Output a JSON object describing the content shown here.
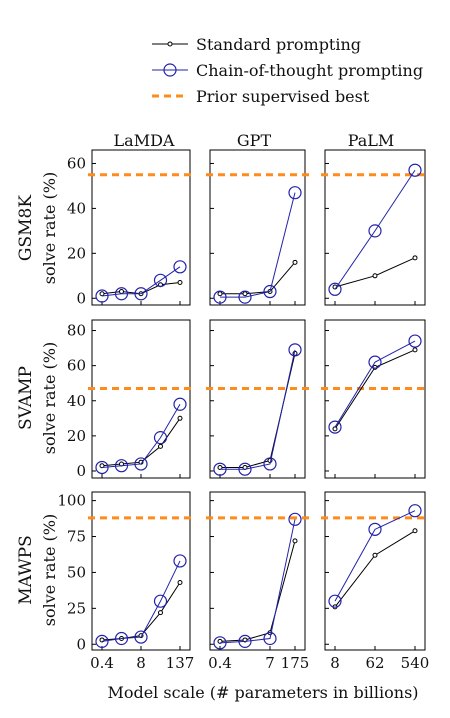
{
  "legend": {
    "standard": "Standard prompting",
    "cot": "Chain-of-thought prompting",
    "prior": "Prior supervised best"
  },
  "xlabel": "Model scale (# parameters in billions)",
  "colors": {
    "standard": "#000000",
    "cot": "#2222aa",
    "prior": "#ff8c1a"
  },
  "chart_data": {
    "type": "line",
    "columns": [
      "LaMDA",
      "GPT",
      "PaLM"
    ],
    "rows": [
      {
        "dataset": "GSM8K",
        "ylabel": "solve rate (%)",
        "yticks": [
          0,
          20,
          40,
          60
        ],
        "ylim": [
          -3,
          66
        ]
      },
      {
        "dataset": "SVAMP",
        "ylabel": "solve rate (%)",
        "yticks": [
          0,
          20,
          40,
          60,
          80
        ],
        "ylim": [
          -4,
          86
        ]
      },
      {
        "dataset": "MAWPS",
        "ylabel": "solve rate (%)",
        "yticks": [
          0,
          25,
          50,
          75,
          100
        ],
        "ylim": [
          -4,
          106
        ]
      }
    ],
    "models": {
      "LaMDA": {
        "x_ticks": [
          "0.4",
          "8",
          "137"
        ],
        "n_points": 5,
        "tick_idx": [
          0,
          2,
          4
        ]
      },
      "GPT": {
        "x_ticks": [
          "0.4",
          "7",
          "175"
        ],
        "n_points": 4,
        "tick_idx": [
          0,
          2,
          3
        ]
      },
      "PaLM": {
        "x_ticks": [
          "8",
          "62",
          "540"
        ],
        "n_points": 3,
        "tick_idx": [
          0,
          1,
          2
        ]
      }
    },
    "panels": [
      {
        "row": "GSM8K",
        "model": "LaMDA",
        "standard": [
          2,
          3,
          2,
          6,
          7
        ],
        "cot": [
          1,
          2,
          2,
          8,
          14
        ],
        "prior": 55
      },
      {
        "row": "GSM8K",
        "model": "GPT",
        "standard": [
          2,
          2,
          3,
          16
        ],
        "cot": [
          0.5,
          0.5,
          3,
          47
        ],
        "prior": 55
      },
      {
        "row": "GSM8K",
        "model": "PaLM",
        "standard": [
          5,
          10,
          18
        ],
        "cot": [
          4,
          30,
          57
        ],
        "prior": 55
      },
      {
        "row": "SVAMP",
        "model": "LaMDA",
        "standard": [
          3,
          4,
          5,
          14,
          30
        ],
        "cot": [
          2,
          3,
          4,
          19,
          38
        ],
        "prior": 47
      },
      {
        "row": "SVAMP",
        "model": "GPT",
        "standard": [
          2,
          2,
          6,
          67
        ],
        "cot": [
          1,
          1,
          4,
          69
        ],
        "prior": 47
      },
      {
        "row": "SVAMP",
        "model": "PaLM",
        "standard": [
          24,
          59,
          69
        ],
        "cot": [
          25,
          62,
          74
        ],
        "prior": 47
      },
      {
        "row": "MAWPS",
        "model": "LaMDA",
        "standard": [
          3,
          4,
          6,
          22,
          43
        ],
        "cot": [
          2,
          4,
          5,
          30,
          58
        ],
        "prior": 88
      },
      {
        "row": "MAWPS",
        "model": "GPT",
        "standard": [
          2,
          3,
          8,
          72
        ],
        "cot": [
          1,
          2,
          4,
          87
        ],
        "prior": 88
      },
      {
        "row": "MAWPS",
        "model": "PaLM",
        "standard": [
          26,
          62,
          79
        ],
        "cot": [
          30,
          80,
          93
        ],
        "prior": 88
      }
    ]
  }
}
